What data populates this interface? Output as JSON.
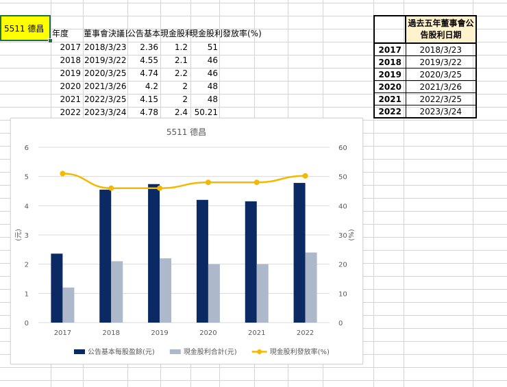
{
  "sheet": {
    "name_cell": "5511 德昌",
    "headers": [
      "年度",
      "董事會決議日",
      "公告基本每",
      "現金股利",
      "現金股利發放率(%)"
    ],
    "header_display": [
      "年度",
      "董事會決議日",
      "公告基本",
      "現金股利",
      "現金股利發放率(%)"
    ],
    "rows": [
      [
        "2017",
        "2018/3/23",
        "2.36",
        "1.2",
        "51"
      ],
      [
        "2018",
        "2019/3/22",
        "4.55",
        "2.1",
        "46"
      ],
      [
        "2019",
        "2020/3/25",
        "4.74",
        "2.2",
        "46"
      ],
      [
        "2020",
        "2021/3/26",
        "4.2",
        "2",
        "48"
      ],
      [
        "2021",
        "2022/3/25",
        "4.15",
        "2",
        "48"
      ],
      [
        "2022",
        "2023/3/24",
        "4.78",
        "2.4",
        "50.21"
      ]
    ]
  },
  "summary_box": {
    "title_line1": "過去五年董事會公",
    "title_line2": "告股利日期",
    "rows": [
      [
        "2017",
        "2018/3/23"
      ],
      [
        "2018",
        "2019/3/22"
      ],
      [
        "2019",
        "2020/3/25"
      ],
      [
        "2020",
        "2021/3/26"
      ],
      [
        "2021",
        "2022/3/25"
      ],
      [
        "2022",
        "2023/3/24"
      ]
    ]
  },
  "chart_data": {
    "type": "bar",
    "title": "5511 德昌",
    "categories": [
      "2017",
      "2018",
      "2019",
      "2020",
      "2021",
      "2022"
    ],
    "ylabel": "(元)",
    "y2label": "(%)",
    "ylim": [
      0,
      6
    ],
    "y2lim": [
      0,
      60
    ],
    "yticks": [
      "0",
      "1",
      "2",
      "3",
      "4",
      "5",
      "6"
    ],
    "y2ticks": [
      "0",
      "10",
      "20",
      "30",
      "40",
      "50",
      "60"
    ],
    "series": [
      {
        "name": "公告基本每股盈餘(元)",
        "type": "bar",
        "axis": "left",
        "color": "#0b2a63",
        "values": [
          2.36,
          4.55,
          4.74,
          4.2,
          4.15,
          4.78
        ]
      },
      {
        "name": "現金股利合計(元)",
        "type": "bar",
        "axis": "left",
        "color": "#adb9ca",
        "values": [
          1.2,
          2.1,
          2.2,
          2,
          2,
          2.4
        ]
      },
      {
        "name": "現金股利發放率(%)",
        "type": "line",
        "axis": "right",
        "color": "#f5b800",
        "values": [
          51,
          46,
          46,
          48,
          48,
          50.21
        ]
      }
    ],
    "legend": "bottom",
    "grid": true
  }
}
